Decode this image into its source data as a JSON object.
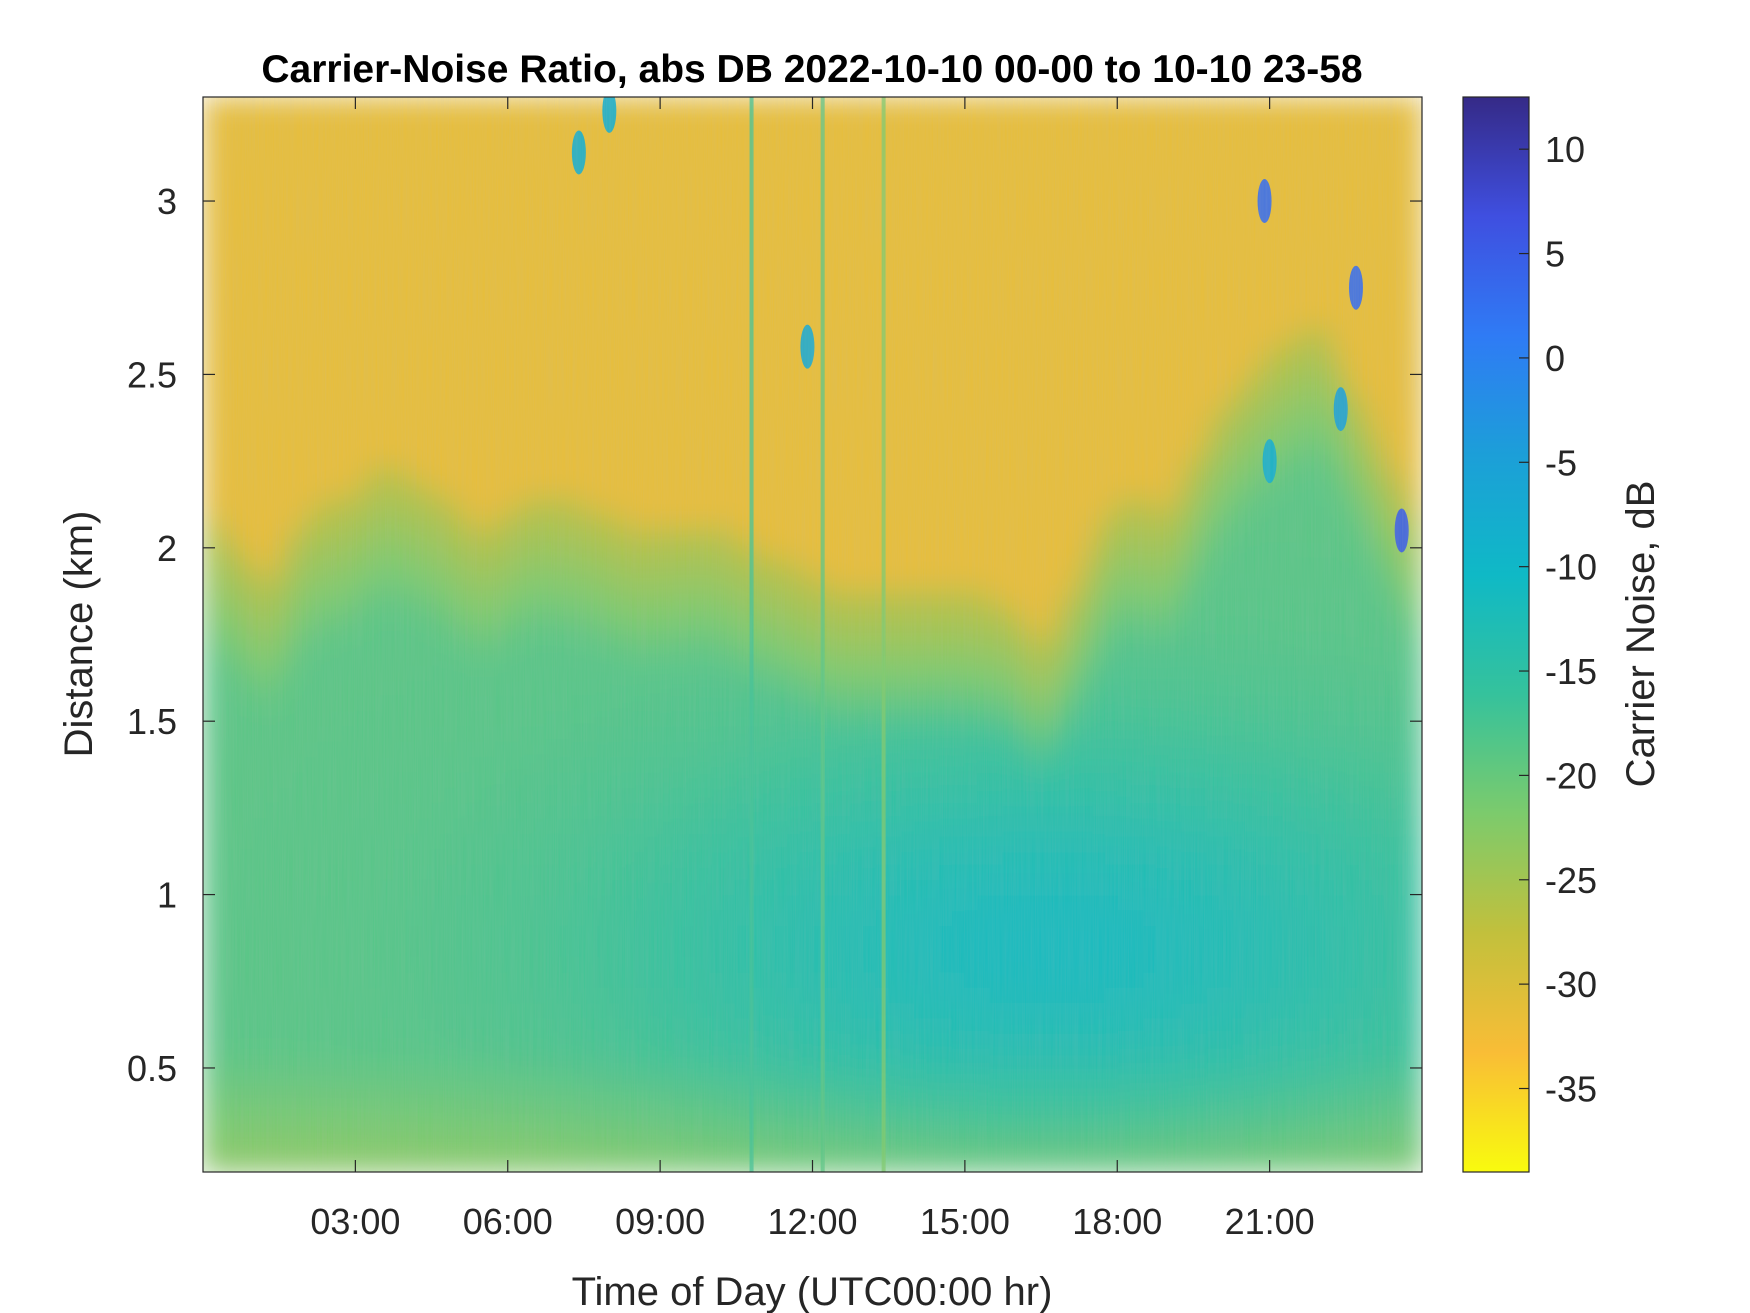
{
  "chart_data": {
    "type": "heatmap",
    "title": "Carrier-Noise Ratio, abs DB 2022-10-10 00-00 to 10-10 23-58",
    "xlabel": "Time of Day (UTC00:00 hr)",
    "ylabel": "Distance (km)",
    "colorbar_label": "Carrier Noise, dB",
    "xlim_hours": [
      0,
      24
    ],
    "ylim": [
      0.2,
      3.3
    ],
    "clim": [
      -39,
      12.5
    ],
    "x_ticks": [
      {
        "value": 3,
        "label": "03:00"
      },
      {
        "value": 6,
        "label": "06:00"
      },
      {
        "value": 9,
        "label": "09:00"
      },
      {
        "value": 12,
        "label": "12:00"
      },
      {
        "value": 15,
        "label": "15:00"
      },
      {
        "value": 18,
        "label": "18:00"
      },
      {
        "value": 21,
        "label": "21:00"
      }
    ],
    "y_ticks": [
      {
        "value": 0.5,
        "label": "0.5"
      },
      {
        "value": 1,
        "label": "1"
      },
      {
        "value": 1.5,
        "label": "1.5"
      },
      {
        "value": 2,
        "label": "2"
      },
      {
        "value": 2.5,
        "label": "2.5"
      },
      {
        "value": 3,
        "label": "3"
      }
    ],
    "colorbar_ticks": [
      {
        "value": 10,
        "label": "10"
      },
      {
        "value": 5,
        "label": "5"
      },
      {
        "value": 0,
        "label": "0"
      },
      {
        "value": -5,
        "label": "-5"
      },
      {
        "value": -10,
        "label": "-10"
      },
      {
        "value": -15,
        "label": "-15"
      },
      {
        "value": -20,
        "label": "-20"
      },
      {
        "value": -25,
        "label": "-25"
      },
      {
        "value": -30,
        "label": "-30"
      },
      {
        "value": -35,
        "label": "-35"
      }
    ],
    "colormap": "parula",
    "colormap_stops": [
      "#352a87",
      "#3f4fe0",
      "#2f7bf5",
      "#1c9fd8",
      "#0fb9c6",
      "#35c29c",
      "#7ccb6c",
      "#c2c03c",
      "#f9bd36",
      "#f9fb0e"
    ],
    "top_boundary_km": [
      [
        0,
        2.05
      ],
      [
        0.7,
        1.95
      ],
      [
        1.3,
        1.85
      ],
      [
        2,
        2.05
      ],
      [
        3,
        2.1
      ],
      [
        3.5,
        2.18
      ],
      [
        4.5,
        2.12
      ],
      [
        5.5,
        2.0
      ],
      [
        6.5,
        2.1
      ],
      [
        7.5,
        2.07
      ],
      [
        8.5,
        2.0
      ],
      [
        10,
        2.02
      ],
      [
        10.8,
        1.95
      ],
      [
        11.5,
        1.9
      ],
      [
        12.5,
        1.82
      ],
      [
        14,
        1.82
      ],
      [
        15,
        1.82
      ],
      [
        16,
        1.78
      ],
      [
        16.5,
        1.65
      ],
      [
        17.2,
        1.85
      ],
      [
        18,
        2.1
      ],
      [
        19,
        2.05
      ],
      [
        20,
        2.35
      ],
      [
        21,
        2.5
      ],
      [
        22,
        2.6
      ],
      [
        23,
        2.3
      ],
      [
        24,
        2.0
      ]
    ],
    "low_noise_core": {
      "center_hour": 16.7,
      "center_km": 0.85,
      "value_db": -11
    },
    "features": [
      {
        "type": "vertical-streak",
        "hour": 10.8,
        "value_db": -17
      },
      {
        "type": "vertical-streak",
        "hour": 12.2,
        "value_db": -19
      },
      {
        "type": "vertical-streak",
        "hour": 13.4,
        "value_db": -22
      },
      {
        "type": "cloud-speck",
        "hour": 8.0,
        "km": 3.26,
        "value_db": -8
      },
      {
        "type": "cloud-speck",
        "hour": 7.4,
        "km": 3.14,
        "value_db": -8
      },
      {
        "type": "cloud-speck",
        "hour": 11.9,
        "km": 2.58,
        "value_db": -7
      },
      {
        "type": "cloud-speck",
        "hour": 20.9,
        "km": 3.0,
        "value_db": 3
      },
      {
        "type": "cloud-speck",
        "hour": 22.7,
        "km": 2.75,
        "value_db": 3
      },
      {
        "type": "cloud-speck",
        "hour": 23.6,
        "km": 2.05,
        "value_db": 5
      },
      {
        "type": "cloud-speck",
        "hour": 22.4,
        "km": 2.4,
        "value_db": -5
      },
      {
        "type": "cloud-speck",
        "hour": 21.0,
        "km": 2.25,
        "value_db": -8
      }
    ]
  }
}
